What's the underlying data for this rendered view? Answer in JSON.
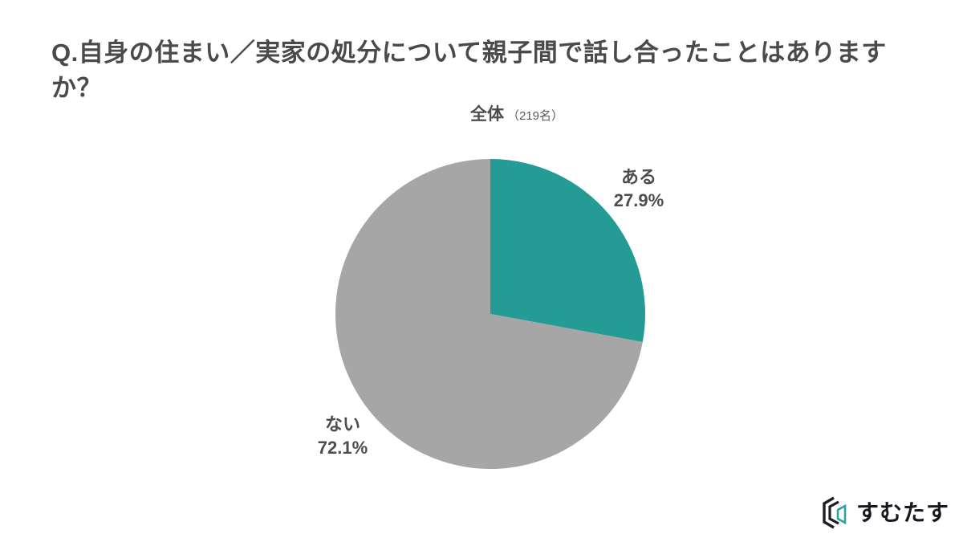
{
  "title": "Q.自身の住まい／実家の処分について親子間で話し合ったことはありますか？",
  "chart_data": {
    "type": "pie",
    "group_label": "全体",
    "group_count_label": "（219名）",
    "start_angle_deg": 0,
    "direction": "clockwise",
    "slices": [
      {
        "label": "ある",
        "value": 27.9,
        "value_label": "27.9%",
        "color": "#249B95"
      },
      {
        "label": "ない",
        "value": 72.1,
        "value_label": "72.1%",
        "color": "#A6A6A6"
      }
    ],
    "label_text_color": "#4d4d4d",
    "legend_position": "on-chart",
    "grid": false
  },
  "logo": {
    "text": "すむたす",
    "text_color": "#17171f",
    "icon_dark_color": "#1d1d27",
    "icon_accent_color": "#2aa49d"
  }
}
